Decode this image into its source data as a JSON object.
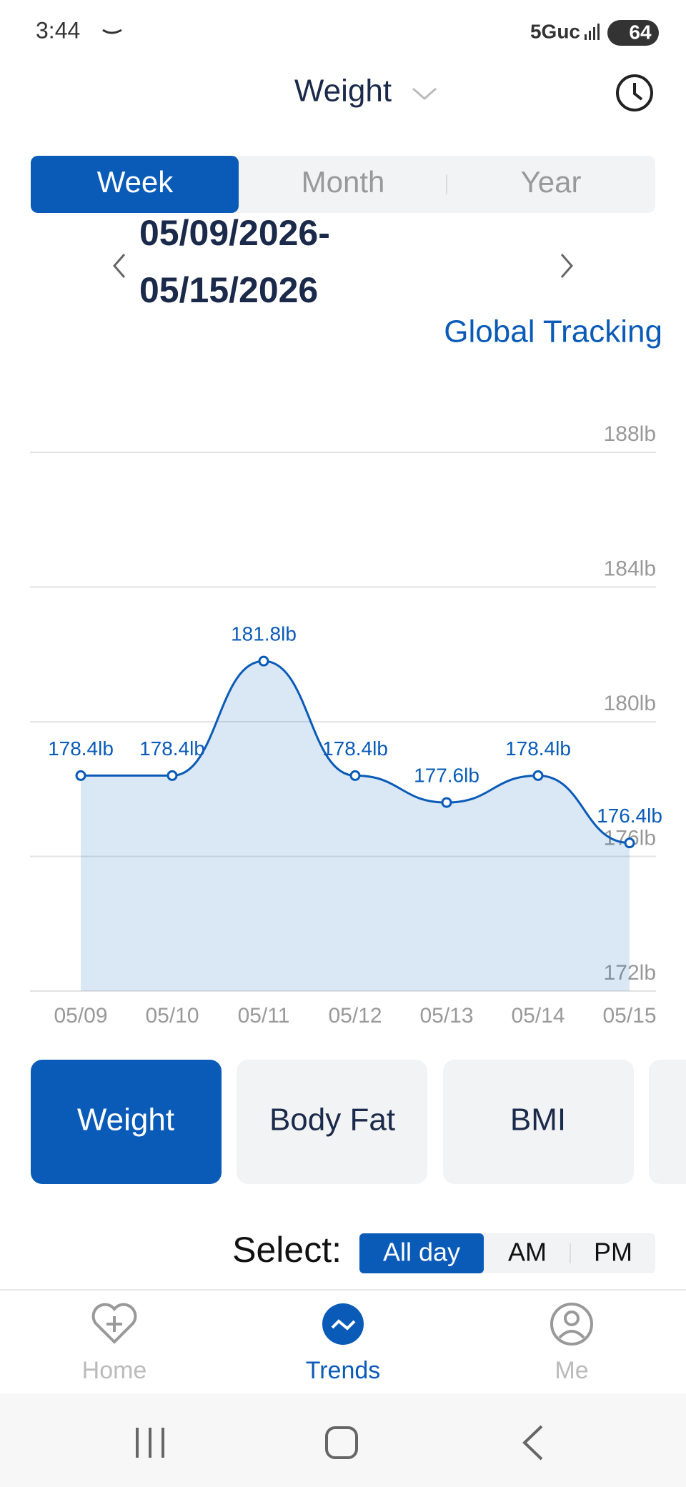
{
  "status_bar": {
    "time": "3:44",
    "network": "5Guc",
    "battery": "64"
  },
  "header": {
    "title": "Weight"
  },
  "tabs": [
    "Week",
    "Month",
    "Year"
  ],
  "date_range": {
    "start": "05/09/2026-",
    "end": "05/15/2026"
  },
  "global_tracking": "Global Tracking",
  "chart_data": {
    "type": "area",
    "categories": [
      "05/09",
      "05/10",
      "05/11",
      "05/12",
      "05/13",
      "05/14",
      "05/15"
    ],
    "series": [
      {
        "name": "Weight",
        "color": "#0a5bb8",
        "values": [
          178.4,
          178.4,
          181.8,
          178.4,
          177.6,
          178.4,
          176.4
        ],
        "value_labels": [
          "178.4lb",
          "178.4lb",
          "181.8lb",
          "178.4lb",
          "177.6lb",
          "178.4lb",
          "176.4lb"
        ]
      }
    ],
    "ylim": [
      172,
      188
    ],
    "yticks": [
      {
        "value": 172,
        "label": "172lb"
      },
      {
        "value": 176,
        "label": "176lb"
      },
      {
        "value": 180,
        "label": "180lb"
      },
      {
        "value": 184,
        "label": "184lb"
      },
      {
        "value": 188,
        "label": "188lb"
      }
    ],
    "grid": true
  },
  "metrics": [
    "Weight",
    "Body Fat",
    "BMI"
  ],
  "select": {
    "label": "Select:",
    "options": [
      "All day",
      "AM",
      "PM"
    ]
  },
  "nav": [
    "Home",
    "Trends",
    "Me"
  ]
}
